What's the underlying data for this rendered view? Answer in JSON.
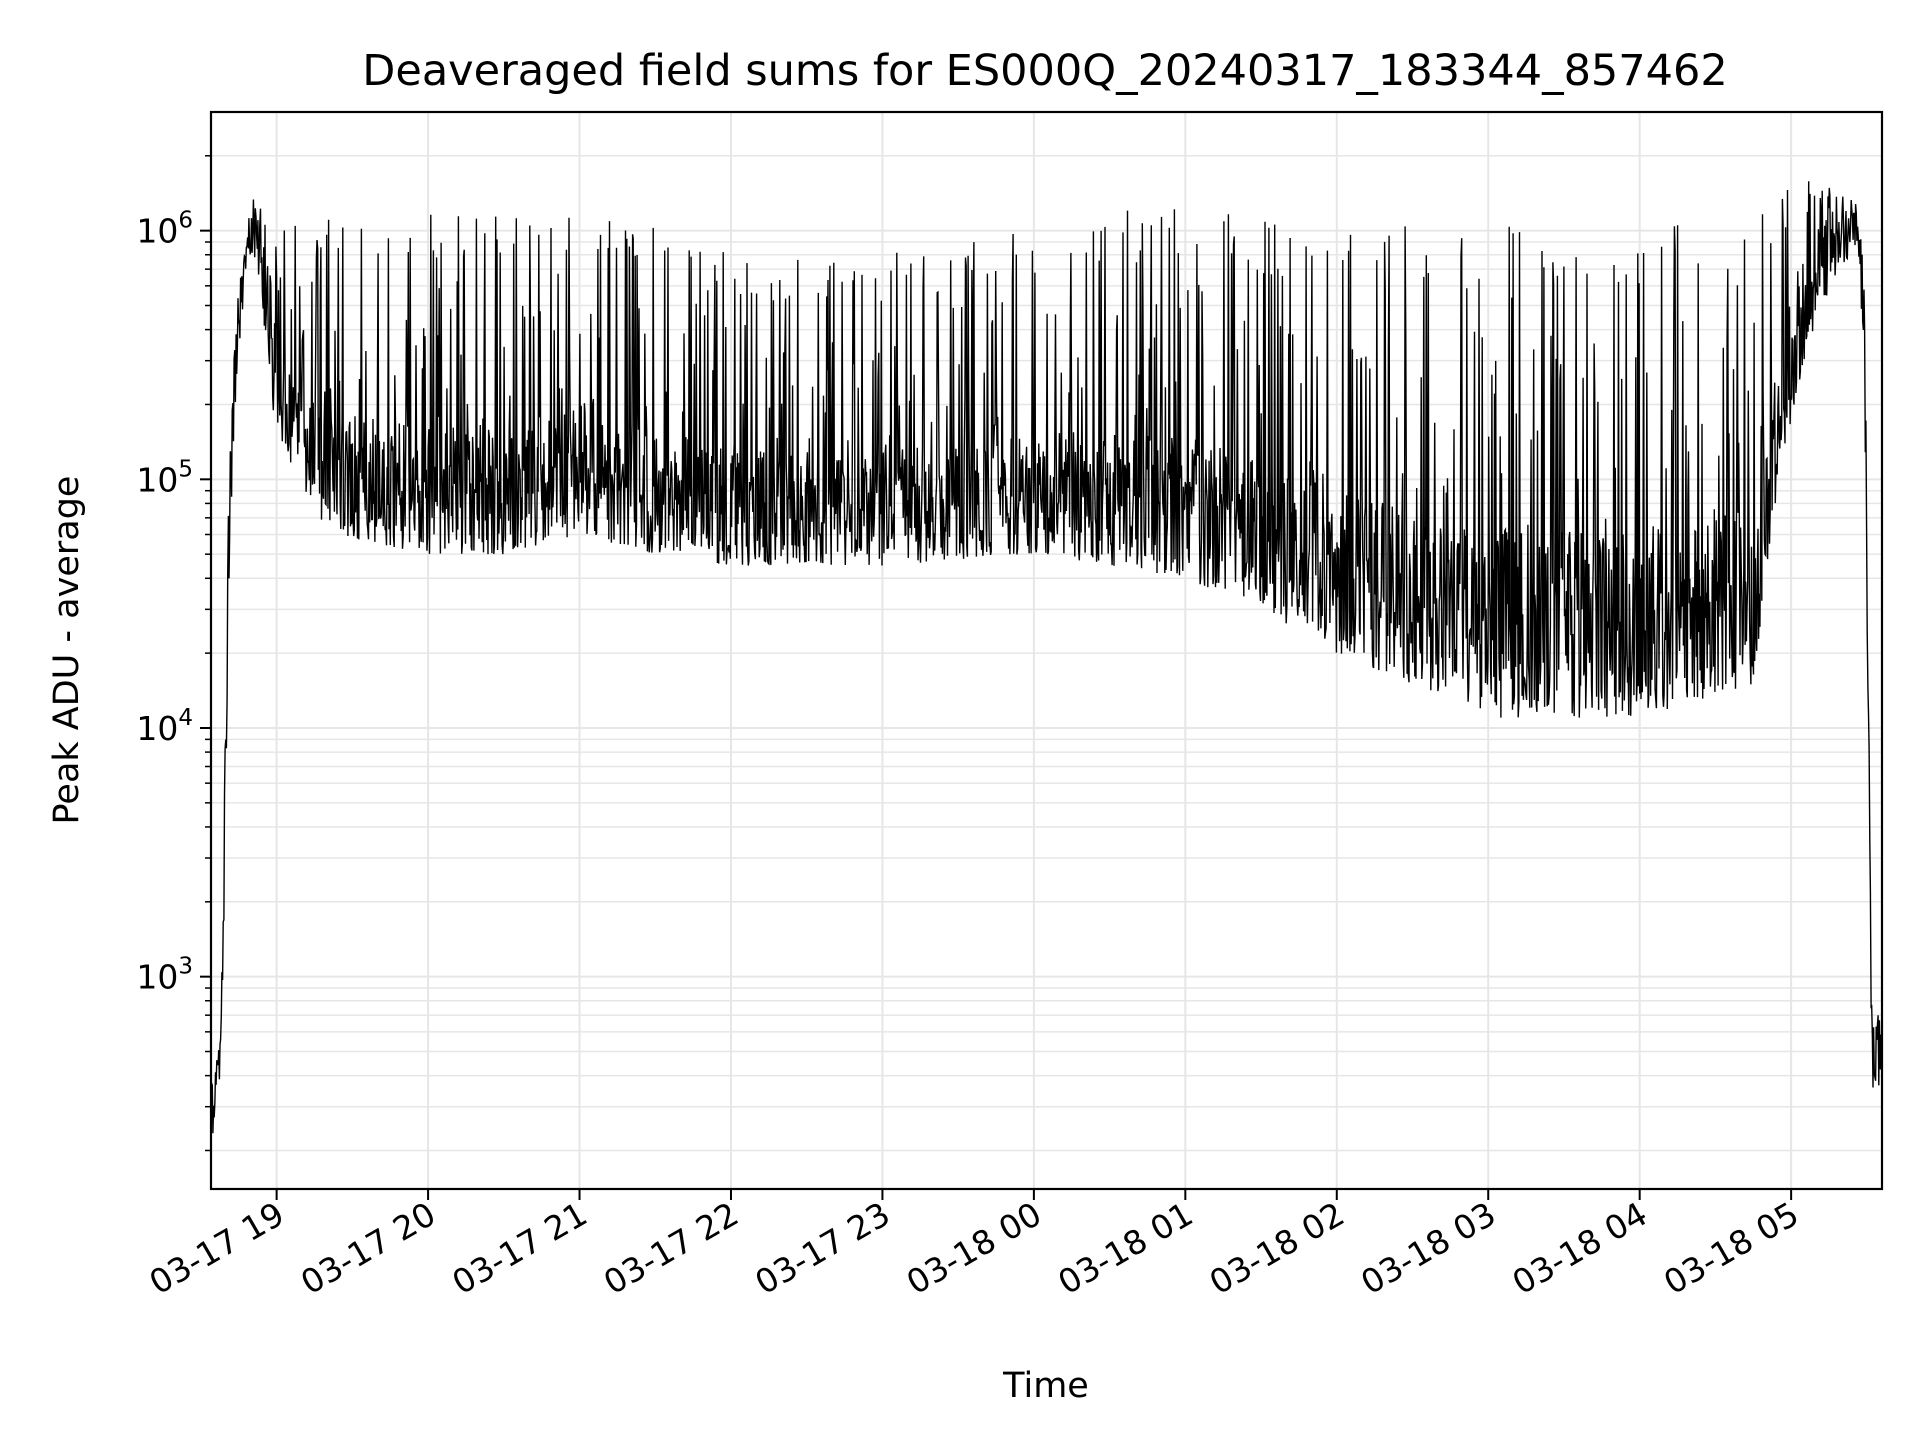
{
  "chart_data": {
    "type": "line",
    "title": "Deaveraged field sums for ES000Q_20240317_183344_857462",
    "xlabel": "Time",
    "ylabel": "Peak ADU - average",
    "x_axis": {
      "type": "time",
      "range": [
        "2024-03-17 18:34",
        "2024-03-18 05:36"
      ],
      "ticks": [
        {
          "label": "03-17 19",
          "value": "2024-03-17 19:00"
        },
        {
          "label": "03-17 20",
          "value": "2024-03-17 20:00"
        },
        {
          "label": "03-17 21",
          "value": "2024-03-17 21:00"
        },
        {
          "label": "03-17 22",
          "value": "2024-03-17 22:00"
        },
        {
          "label": "03-17 23",
          "value": "2024-03-17 23:00"
        },
        {
          "label": "03-18 00",
          "value": "2024-03-18 00:00"
        },
        {
          "label": "03-18 01",
          "value": "2024-03-18 01:00"
        },
        {
          "label": "03-18 02",
          "value": "2024-03-18 02:00"
        },
        {
          "label": "03-18 03",
          "value": "2024-03-18 03:00"
        },
        {
          "label": "03-18 04",
          "value": "2024-03-18 04:00"
        },
        {
          "label": "03-18 05",
          "value": "2024-03-18 05:00"
        }
      ]
    },
    "y_axis": {
      "scale": "log",
      "range": [
        140,
        3000000
      ],
      "ticks": [
        {
          "base": "10",
          "exp": "3",
          "value": 1000
        },
        {
          "base": "10",
          "exp": "4",
          "value": 10000
        },
        {
          "base": "10",
          "exp": "5",
          "value": 100000
        },
        {
          "base": "10",
          "exp": "6",
          "value": 1000000
        }
      ]
    },
    "grid": true,
    "line_color": "#000000",
    "grid_color": "#e6e6e6",
    "profile": [
      {
        "t": "2024-03-17 18:34",
        "low": 220,
        "high": 480
      },
      {
        "t": "2024-03-17 18:38",
        "low": 300,
        "high": 700
      },
      {
        "t": "2024-03-17 18:41",
        "low": 30000,
        "high": 100000
      },
      {
        "t": "2024-03-17 18:44",
        "low": 250000,
        "high": 500000
      },
      {
        "t": "2024-03-17 18:48",
        "low": 700000,
        "high": 1000000
      },
      {
        "t": "2024-03-17 18:52",
        "low": 800000,
        "high": 1600000
      },
      {
        "t": "2024-03-17 18:56",
        "low": 300000,
        "high": 1000000
      },
      {
        "t": "2024-03-17 19:00",
        "low": 150000,
        "high": 1000000
      },
      {
        "t": "2024-03-17 19:20",
        "low": 60000,
        "high": 1200000
      },
      {
        "t": "2024-03-17 20:00",
        "low": 50000,
        "high": 1200000
      },
      {
        "t": "2024-03-17 20:30",
        "low": 50000,
        "high": 1150000
      },
      {
        "t": "2024-03-17 21:00",
        "low": 60000,
        "high": 1300000
      },
      {
        "t": "2024-03-17 21:30",
        "low": 50000,
        "high": 1100000
      },
      {
        "t": "2024-03-17 22:00",
        "low": 45000,
        "high": 800000
      },
      {
        "t": "2024-03-17 23:00",
        "low": 45000,
        "high": 800000
      },
      {
        "t": "2024-03-18 00:00",
        "low": 50000,
        "high": 1000000
      },
      {
        "t": "2024-03-18 00:30",
        "low": 45000,
        "high": 1200000
      },
      {
        "t": "2024-03-18 01:00",
        "low": 40000,
        "high": 1300000
      },
      {
        "t": "2024-03-18 01:30",
        "low": 30000,
        "high": 1100000
      },
      {
        "t": "2024-03-18 02:00",
        "low": 20000,
        "high": 1100000
      },
      {
        "t": "2024-03-18 02:30",
        "low": 15000,
        "high": 1050000
      },
      {
        "t": "2024-03-18 03:00",
        "low": 11000,
        "high": 1050000
      },
      {
        "t": "2024-03-18 04:00",
        "low": 11000,
        "high": 1100000
      },
      {
        "t": "2024-03-18 04:45",
        "low": 15000,
        "high": 1100000
      },
      {
        "t": "2024-03-18 04:55",
        "low": 100000,
        "high": 1300000
      },
      {
        "t": "2024-03-18 05:05",
        "low": 300000,
        "high": 1800000
      },
      {
        "t": "2024-03-18 05:20",
        "low": 700000,
        "high": 1400000
      },
      {
        "t": "2024-03-18 05:26",
        "low": 900000,
        "high": 1300000
      },
      {
        "t": "2024-03-18 05:29",
        "low": 300000,
        "high": 800000
      },
      {
        "t": "2024-03-18 05:32",
        "low": 350,
        "high": 700
      },
      {
        "t": "2024-03-18 05:36",
        "low": 320,
        "high": 750
      }
    ]
  }
}
